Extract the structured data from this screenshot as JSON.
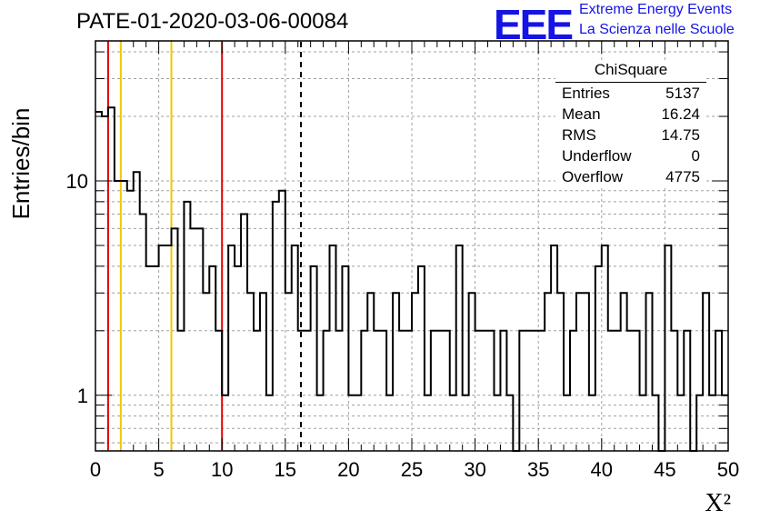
{
  "header": {
    "run_title": "PATE-01-2020-03-06-00084",
    "logo_text": "EEE",
    "logo_line1": "Extreme Energy Events",
    "logo_line2": "La Scienza nelle Scuole"
  },
  "colors": {
    "logo": "#1414e6",
    "cut_red": "#e60000",
    "cut_yellow": "#f0c800",
    "histogram": "#000000",
    "grid": "#a0a0a0"
  },
  "stats_box": {
    "title": "ChiSquare",
    "rows": [
      {
        "label": "Entries",
        "value": "5137"
      },
      {
        "label": "Mean",
        "value": "16.24"
      },
      {
        "label": "RMS",
        "value": "14.75"
      },
      {
        "label": "Underflow",
        "value": "0"
      },
      {
        "label": "Overflow",
        "value": "4775"
      }
    ]
  },
  "chart_data": {
    "type": "histogram",
    "title": "PATE-01-2020-03-06-00084",
    "xlabel": "X²",
    "ylabel": "Entries/bin",
    "x_range": [
      0,
      50
    ],
    "y_range": [
      0.55,
      45
    ],
    "y_scale": "log",
    "grid": true,
    "bin_width": 0.5,
    "x_ticks": [
      0,
      5,
      10,
      15,
      20,
      25,
      30,
      35,
      40,
      45,
      50
    ],
    "x_tick_labels": [
      "0",
      "5",
      "10",
      "15",
      "20",
      "25",
      "30",
      "35",
      "40",
      "45",
      "50"
    ],
    "y_ticks": [
      1,
      10
    ],
    "y_tick_labels": [
      "1",
      "10"
    ],
    "counts": [
      21,
      20,
      22,
      10,
      10,
      9,
      11,
      7,
      4,
      4,
      5,
      5,
      6,
      2,
      8,
      6,
      6,
      3,
      4,
      2,
      1,
      5,
      4,
      7,
      3,
      2,
      3,
      1,
      8,
      9,
      3,
      5,
      2,
      2,
      4,
      1,
      2,
      5,
      2,
      4,
      1,
      1,
      2,
      3,
      2,
      2,
      1,
      3,
      2,
      2,
      3,
      4,
      1,
      2,
      2,
      2,
      1,
      5,
      1,
      3,
      2,
      2,
      2,
      1,
      2,
      1,
      0,
      2,
      2,
      2,
      2,
      3,
      5,
      3,
      1,
      2,
      3,
      3,
      1,
      4,
      5,
      2,
      2,
      3,
      2,
      2,
      1,
      3,
      1,
      0,
      5,
      2,
      1,
      2,
      0,
      1,
      3,
      1,
      2,
      1
    ],
    "vertical_lines": [
      {
        "x": 1,
        "color": "#e60000",
        "style": "solid"
      },
      {
        "x": 2,
        "color": "#f0c800",
        "style": "solid"
      },
      {
        "x": 6,
        "color": "#f0c800",
        "style": "solid"
      },
      {
        "x": 10,
        "color": "#e60000",
        "style": "solid"
      },
      {
        "x": 16.24,
        "color": "#000000",
        "style": "dashed"
      }
    ]
  }
}
